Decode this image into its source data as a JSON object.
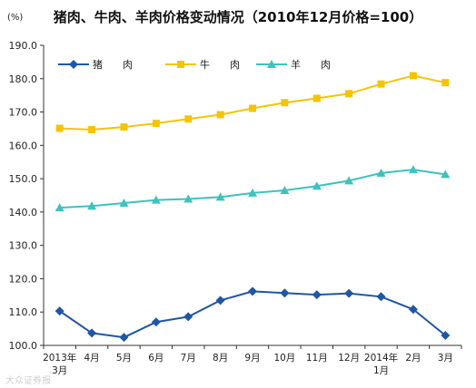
{
  "chart_data": {
    "type": "line",
    "title": "猪肉、牛肉、羊肉价格变动情况（2010年12月价格=100）",
    "unit_label": "(%)",
    "ylim": [
      100,
      190
    ],
    "y_ticks": [
      "100.0",
      "110.0",
      "120.0",
      "130.0",
      "140.0",
      "150.0",
      "160.0",
      "170.0",
      "180.0",
      "190.0"
    ],
    "categories": [
      [
        "2013年",
        "3月"
      ],
      [
        "4月"
      ],
      [
        "5月"
      ],
      [
        "6月"
      ],
      [
        "7月"
      ],
      [
        "8月"
      ],
      [
        "9月"
      ],
      [
        "10月"
      ],
      [
        "11月"
      ],
      [
        "12月"
      ],
      [
        "2014年",
        "1月"
      ],
      [
        "2月"
      ],
      [
        "3月"
      ]
    ],
    "grid": false,
    "legend_position": "top-left",
    "series": [
      {
        "name": "猪　　肉",
        "color": "#1f56a6",
        "marker": "diamond",
        "values": [
          110.3,
          103.7,
          102.4,
          107.0,
          108.6,
          113.5,
          116.2,
          115.7,
          115.2,
          115.6,
          114.6,
          110.8,
          103.0
        ]
      },
      {
        "name": "牛　　肉",
        "color": "#f5c400",
        "marker": "square",
        "values": [
          165.1,
          164.7,
          165.5,
          166.6,
          167.9,
          169.2,
          171.1,
          172.8,
          174.1,
          175.5,
          178.4,
          180.9,
          178.8
        ]
      },
      {
        "name": "羊　　肉",
        "color": "#3cc3bf",
        "marker": "triangle",
        "values": [
          141.3,
          141.8,
          142.7,
          143.6,
          143.9,
          144.5,
          145.7,
          146.5,
          147.8,
          149.4,
          151.7,
          152.7,
          151.3
        ]
      }
    ]
  },
  "watermark": "大众证券报"
}
